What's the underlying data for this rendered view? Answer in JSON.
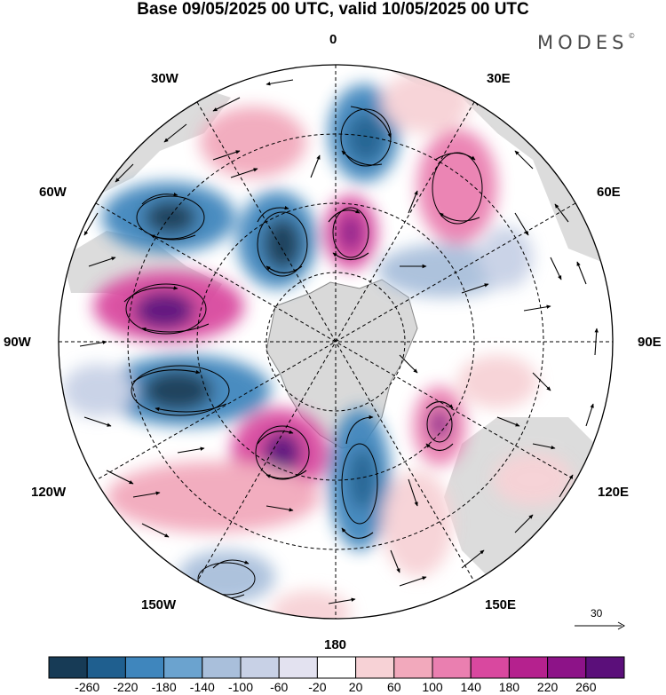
{
  "header": {
    "title": "Base 09/05/2025 00 UTC, valid 10/05/2025 00 UTC",
    "brand": "MODES",
    "brand_mark": "©"
  },
  "map": {
    "projection": "south-polar-stereographic",
    "longitude_labels": {
      "lon_0": "0",
      "lon_30e": "30E",
      "lon_60e": "60E",
      "lon_90e": "90E",
      "lon_120e": "120E",
      "lon_150e": "150E",
      "lon_180": "180",
      "lon_150w": "150W",
      "lon_120w": "120W",
      "lon_90w": "90W",
      "lon_60w": "60W",
      "lon_30w": "30W"
    },
    "colors": {
      "land": "#d6d6d6",
      "coast": "#7a7a7a",
      "neg_strong": "#1f4e79",
      "pos_strong": "#7b1f7a"
    }
  },
  "reference_vector": {
    "value": "30"
  },
  "colorbar": {
    "ticks": [
      "-260",
      "-220",
      "-180",
      "-140",
      "-100",
      "-60",
      "-20",
      "20",
      "60",
      "100",
      "140",
      "180",
      "220",
      "260"
    ],
    "colors": [
      "#173b56",
      "#1f5f8f",
      "#3f86bd",
      "#6ba3cf",
      "#a9bfdb",
      "#c8d1e6",
      "#e3e2f0",
      "#ffffff",
      "#f7d2d6",
      "#f2a9bc",
      "#ea7fb0",
      "#d9489f",
      "#b5218e",
      "#8d1388",
      "#5b0f7a"
    ]
  }
}
